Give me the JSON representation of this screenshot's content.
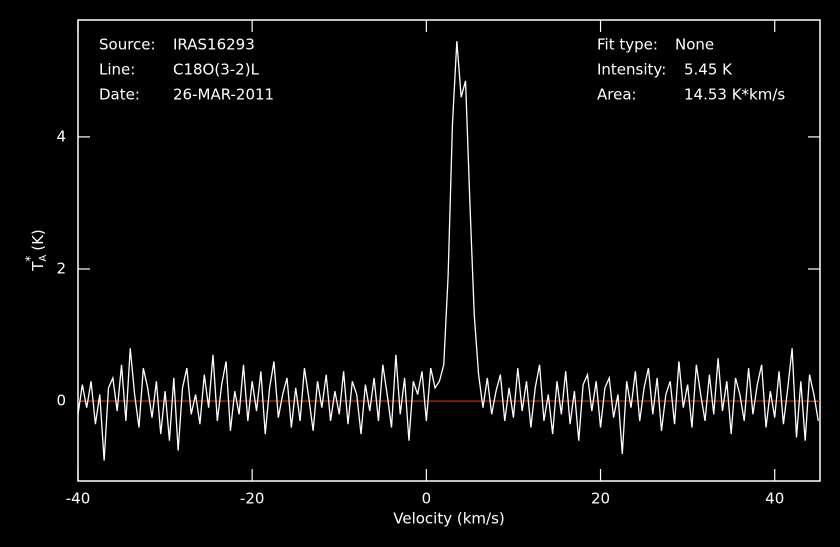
{
  "chart_data": {
    "type": "line",
    "info_left": [
      {
        "label": "Source:",
        "value": "IRAS16293"
      },
      {
        "label": "Line:",
        "value": "C18O(3-2)L"
      },
      {
        "label": "Date:",
        "value": "26-MAR-2011"
      }
    ],
    "info_right": [
      {
        "label": "Fit type:",
        "value": "None"
      },
      {
        "label": "Intensity:",
        "value": "5.45 K"
      },
      {
        "label": "Area:",
        "value": "14.53 K*km/s"
      }
    ],
    "x_label": "Velocity (km/s)",
    "y_label": {
      "symbol": "T",
      "sub": "A",
      "sup": "*",
      "unit": "(K)"
    },
    "xlim": [
      -40,
      45.2
    ],
    "ylim": [
      -1.21,
      5.77
    ],
    "xticks": [
      -40,
      -20,
      0,
      20,
      40
    ],
    "yticks": [
      0,
      2,
      4
    ],
    "baseline": 0,
    "baseline_color": "#c83200",
    "x": [
      -40,
      -39.5,
      -39,
      -38.5,
      -38,
      -37.5,
      -37,
      -36.5,
      -36,
      -35.5,
      -35,
      -34.5,
      -34,
      -33.5,
      -33,
      -32.5,
      -32,
      -31.5,
      -31,
      -30.5,
      -30,
      -29.5,
      -29,
      -28.5,
      -28,
      -27.5,
      -27,
      -26.5,
      -26,
      -25.5,
      -25,
      -24.5,
      -24,
      -23.5,
      -23,
      -22.5,
      -22,
      -21.5,
      -21,
      -20.5,
      -20,
      -19.5,
      -19,
      -18.5,
      -18,
      -17.5,
      -17,
      -16.5,
      -16,
      -15.5,
      -15,
      -14.5,
      -14,
      -13.5,
      -13,
      -12.5,
      -12,
      -11.5,
      -11,
      -10.5,
      -10,
      -9.5,
      -9,
      -8.5,
      -8,
      -7.5,
      -7,
      -6.5,
      -6,
      -5.5,
      -5,
      -4.5,
      -4,
      -3.5,
      -3,
      -2.5,
      -2,
      -1.5,
      -1,
      -0.5,
      0,
      0.5,
      1,
      1.5,
      2,
      2.5,
      3,
      3.5,
      4,
      4.5,
      5,
      5.5,
      6,
      6.5,
      7,
      7.5,
      8,
      8.5,
      9,
      9.5,
      10,
      10.5,
      11,
      11.5,
      12,
      12.5,
      13,
      13.5,
      14,
      14.5,
      15,
      15.5,
      16,
      16.5,
      17,
      17.5,
      18,
      18.5,
      19,
      19.5,
      20,
      20.5,
      21,
      21.5,
      22,
      22.5,
      23,
      23.5,
      24,
      24.5,
      25,
      25.5,
      26,
      26.5,
      27,
      27.5,
      28,
      28.5,
      29,
      29.5,
      30,
      30.5,
      31,
      31.5,
      32,
      32.5,
      33,
      33.5,
      34,
      34.5,
      35,
      35.5,
      36,
      36.5,
      37,
      37.5,
      38,
      38.5,
      39,
      39.5,
      40,
      40.5,
      41,
      41.5,
      42,
      42.5,
      43,
      43.5,
      44,
      44.5,
      45
    ],
    "series": [
      {
        "color": "#ffffff",
        "values": [
          -0.2,
          0.25,
          -0.1,
          0.3,
          -0.35,
          0.1,
          -0.9,
          0.2,
          0.35,
          -0.15,
          0.55,
          -0.3,
          0.8,
          0.1,
          -0.4,
          0.5,
          0.2,
          -0.25,
          0.3,
          -0.5,
          0.15,
          -0.6,
          0.35,
          -0.75,
          0.2,
          0.5,
          -0.2,
          0.1,
          -0.35,
          0.4,
          -0.1,
          0.7,
          -0.3,
          0.25,
          0.6,
          -0.45,
          0.15,
          -0.2,
          0.55,
          -0.3,
          0.3,
          -0.15,
          0.45,
          -0.5,
          0.2,
          0.6,
          -0.25,
          0.1,
          0.35,
          -0.4,
          0.2,
          -0.3,
          0.5,
          0.05,
          -0.45,
          0.3,
          -0.1,
          0.4,
          -0.3,
          0.15,
          -0.2,
          0.45,
          -0.35,
          0.3,
          0.1,
          -0.5,
          0.25,
          -0.15,
          0.35,
          -0.3,
          0.55,
          0.1,
          -0.4,
          0.7,
          -0.2,
          0.35,
          -0.6,
          0.3,
          0.1,
          0.45,
          -0.3,
          0.5,
          0.2,
          0.3,
          0.55,
          1.9,
          4.2,
          5.45,
          4.6,
          4.85,
          3.0,
          1.3,
          0.4,
          -0.1,
          0.35,
          -0.2,
          0.15,
          0.4,
          -0.3,
          0.2,
          -0.25,
          0.5,
          -0.15,
          0.3,
          -0.4,
          0.2,
          0.55,
          -0.3,
          0.1,
          -0.5,
          0.3,
          -0.2,
          0.45,
          -0.35,
          0.15,
          -0.6,
          0.25,
          0.4,
          -0.15,
          0.3,
          -0.4,
          0.2,
          0.35,
          -0.25,
          0.1,
          -0.8,
          0.3,
          -0.1,
          0.45,
          -0.3,
          0.2,
          0.5,
          -0.2,
          0.35,
          -0.45,
          0.1,
          0.3,
          -0.35,
          0.6,
          -0.1,
          0.25,
          -0.4,
          0.55,
          0.1,
          -0.3,
          0.4,
          -0.2,
          0.65,
          -0.15,
          0.3,
          -0.5,
          0.35,
          0.1,
          -0.3,
          0.5,
          -0.2,
          0.25,
          0.55,
          -0.4,
          0.15,
          -0.25,
          0.45,
          -0.35,
          0.2,
          0.8,
          -0.55,
          0.3,
          -0.6,
          0.4,
          0.1,
          -0.3
        ]
      }
    ]
  }
}
